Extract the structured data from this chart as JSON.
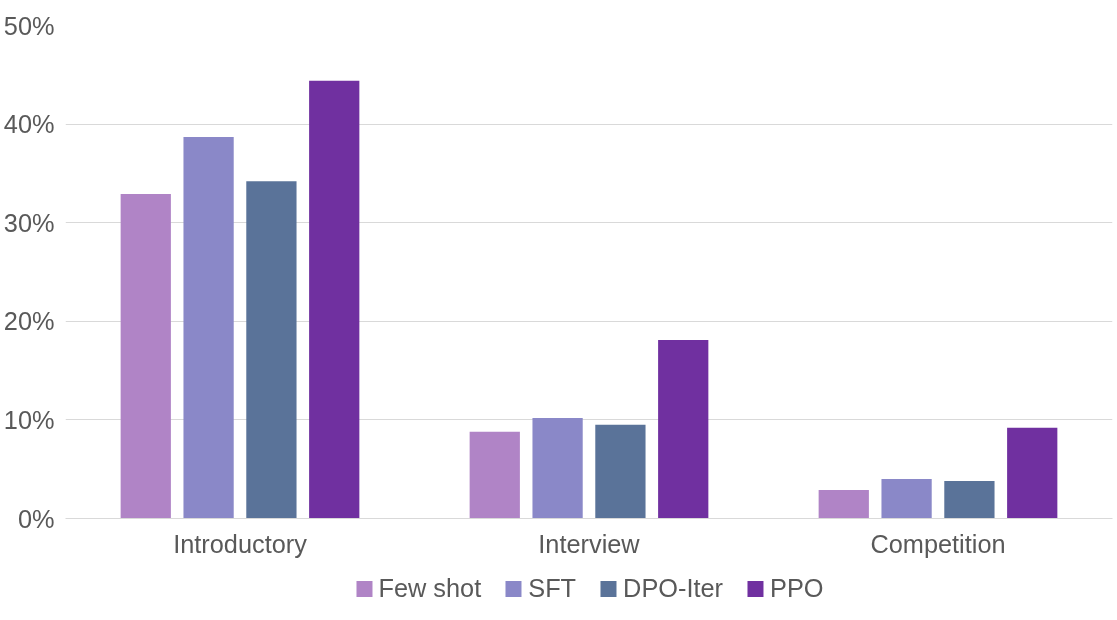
{
  "chart_data": {
    "type": "bar",
    "categories": [
      "Introductory",
      "Interview",
      "Competition"
    ],
    "series": [
      {
        "name": "Few shot",
        "color": "#b084c6",
        "values": [
          32.9,
          8.8,
          2.9
        ]
      },
      {
        "name": "SFT",
        "color": "#8a88c8",
        "values": [
          38.7,
          10.2,
          4.0
        ]
      },
      {
        "name": "DPO-Iter",
        "color": "#5a7399",
        "values": [
          34.2,
          9.5,
          3.8
        ]
      },
      {
        "name": "PPO",
        "color": "#7030a0",
        "values": [
          44.4,
          18.1,
          9.2
        ]
      }
    ],
    "ylim": [
      0,
      50
    ],
    "yticks": [
      {
        "value": 0,
        "label": "0%"
      },
      {
        "value": 10,
        "label": "10%"
      },
      {
        "value": 20,
        "label": "20%"
      },
      {
        "value": 30,
        "label": "30%"
      },
      {
        "value": 40,
        "label": "40%"
      },
      {
        "value": 50,
        "label": "50%"
      }
    ],
    "grid": "y",
    "legend": "bottom"
  }
}
